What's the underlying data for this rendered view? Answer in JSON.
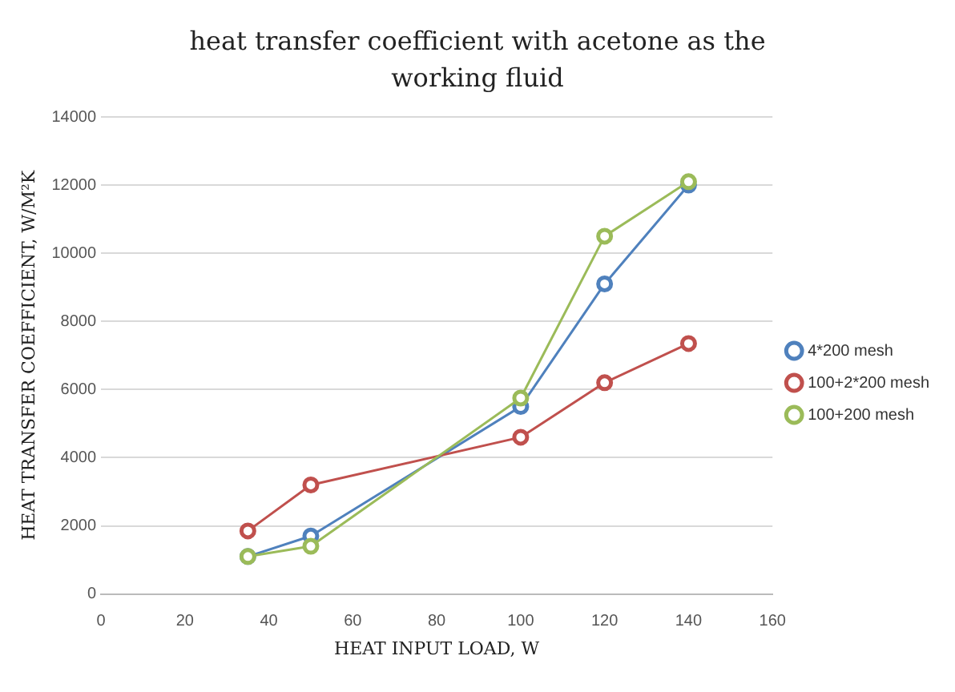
{
  "chart_data": {
    "type": "line",
    "title": "heat transfer coefficient with acetone as the working fluid",
    "xlabel": "HEAT INPUT LOAD, W",
    "ylabel": "HEAT TRANSFER COEFFICIENT, W/M²K",
    "x": [
      35,
      50,
      100,
      120,
      140
    ],
    "series": [
      {
        "name": "4*200 mesh",
        "color": "#4f81bd",
        "values": [
          1100,
          1700,
          5500,
          9100,
          12000
        ]
      },
      {
        "name": "100+2*200 mesh",
        "color": "#c0504d",
        "values": [
          1850,
          3200,
          4600,
          6200,
          7350
        ]
      },
      {
        "name": "100+200 mesh",
        "color": "#9bbb59",
        "values": [
          1100,
          1400,
          5750,
          10500,
          12100
        ]
      }
    ],
    "xlim": [
      0,
      160
    ],
    "xticks": [
      0,
      20,
      40,
      60,
      80,
      100,
      120,
      140,
      160
    ],
    "ylim": [
      0,
      14000
    ],
    "yticks": [
      0,
      2000,
      4000,
      6000,
      8000,
      10000,
      12000,
      14000
    ],
    "grid": "y",
    "legend": "right",
    "marker": "circle",
    "line_style": "solid"
  }
}
